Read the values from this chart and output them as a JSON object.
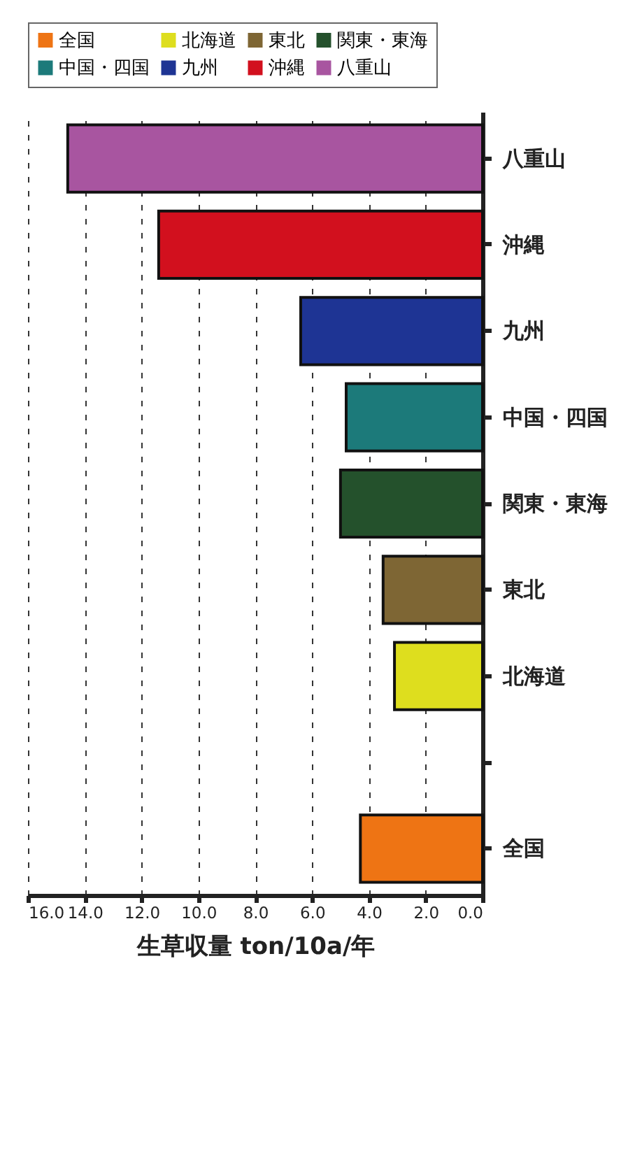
{
  "chart_data": {
    "type": "bar",
    "orientation": "horizontal",
    "xlabel": "生草収量 ton/10a/年",
    "categories": [
      "八重山",
      "沖縄",
      "九州",
      "中国・四国",
      "関東・東海",
      "東北",
      "北海道",
      null,
      "全国"
    ],
    "series": [
      {
        "name": "全国",
        "color": "#ee7414",
        "values": [
          null,
          null,
          null,
          null,
          null,
          null,
          null,
          null,
          4.3
        ]
      },
      {
        "name": "北海道",
        "color": "#dede1e",
        "values": [
          null,
          null,
          null,
          null,
          null,
          null,
          3.1,
          null,
          null
        ]
      },
      {
        "name": "東北",
        "color": "#7e6634",
        "values": [
          null,
          null,
          null,
          null,
          null,
          3.5,
          null,
          null,
          null
        ]
      },
      {
        "name": "関東・東海",
        "color": "#24512c",
        "values": [
          null,
          null,
          null,
          null,
          5.0,
          null,
          null,
          null,
          null
        ]
      },
      {
        "name": "中国・四国",
        "color": "#1c7a7a",
        "values": [
          null,
          null,
          null,
          4.8,
          null,
          null,
          null,
          null,
          null
        ]
      },
      {
        "name": "九州",
        "color": "#1e3494",
        "values": [
          null,
          null,
          6.4,
          null,
          null,
          null,
          null,
          null,
          null
        ]
      },
      {
        "name": "沖縄",
        "color": "#d2101e",
        "values": [
          null,
          11.4,
          null,
          null,
          null,
          null,
          null,
          null,
          null
        ]
      },
      {
        "name": "八重山",
        "color": "#a855a0",
        "values": [
          14.6,
          null,
          null,
          null,
          null,
          null,
          null,
          null,
          null
        ]
      }
    ],
    "xlim": [
      16,
      0
    ],
    "xticks": [
      {
        "value": 16,
        "label": "16.0"
      },
      {
        "value": 14,
        "label": "14.0"
      },
      {
        "value": 12,
        "label": "12.0"
      },
      {
        "value": 10,
        "label": "10.0"
      },
      {
        "value": 8,
        "label": "8.0"
      },
      {
        "value": 6,
        "label": "6.0"
      },
      {
        "value": 4,
        "label": "4.0"
      },
      {
        "value": 2,
        "label": "2.0"
      },
      {
        "value": 0,
        "label": "0.0"
      }
    ],
    "grid": "x",
    "line_style": "dashed",
    "legend": "top"
  }
}
